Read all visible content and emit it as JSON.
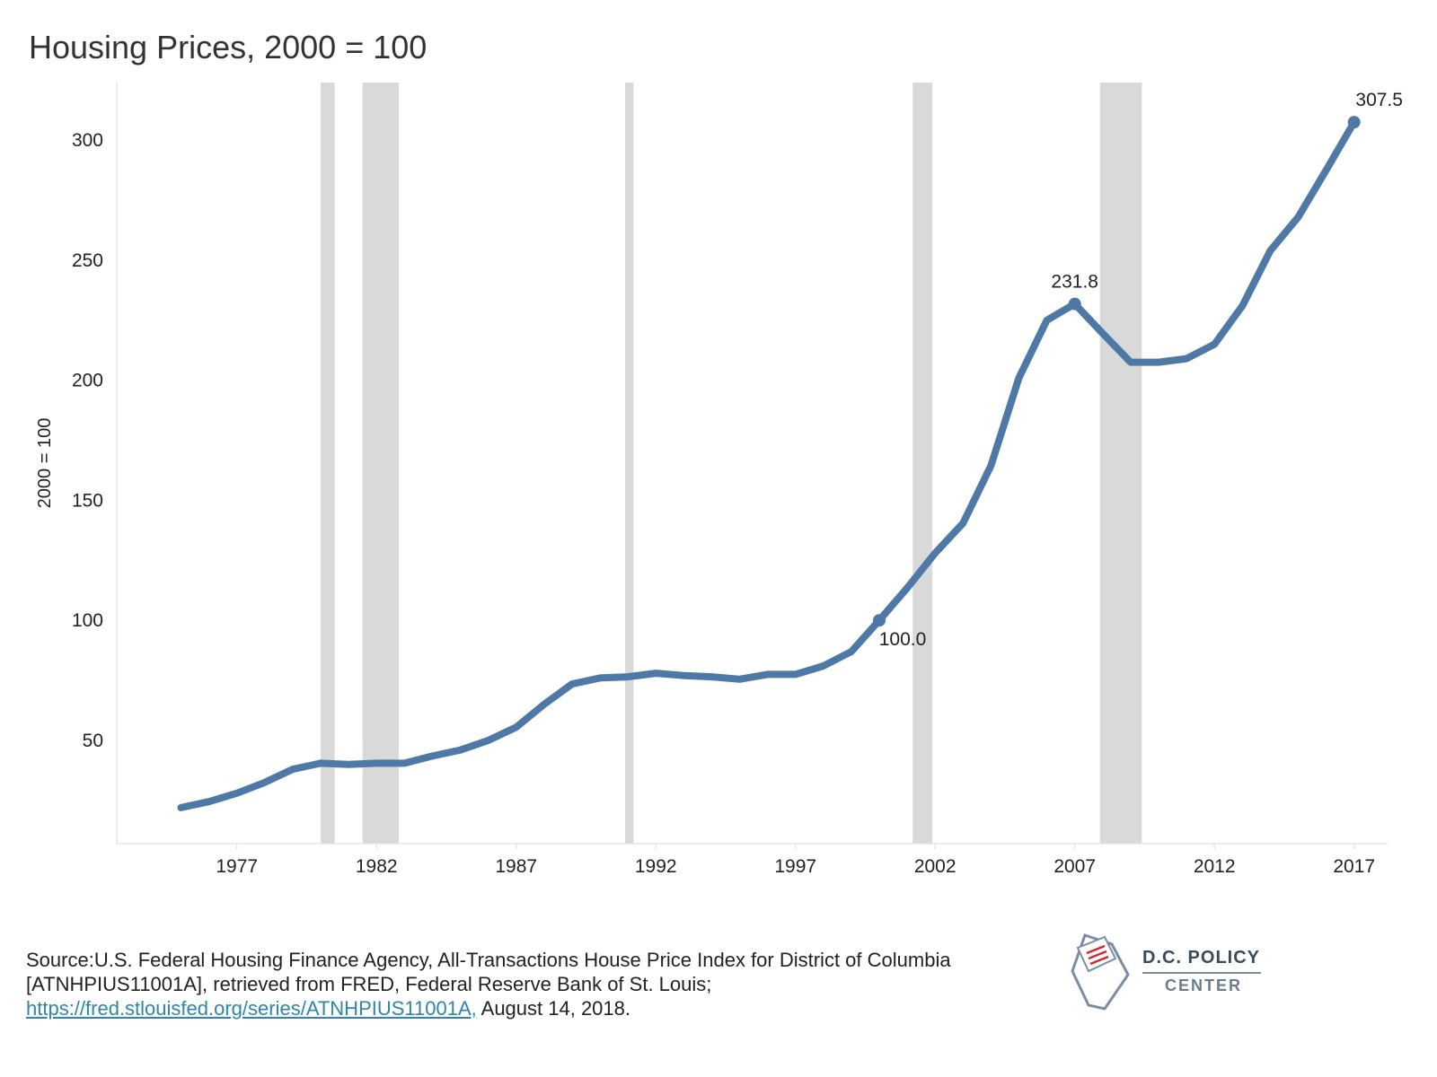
{
  "title": "Housing Prices, 2000 = 100",
  "source": {
    "prefix": "Source:U.S. Federal Housing Finance Agency, All-Transactions House Price Index for District of Columbia [ATNHPIUS11001A], retrieved from FRED, Federal Reserve Bank of St. Louis; ",
    "link_text": "https://fred.stlouisfed.org/series/ATNHPIUS11001A,",
    "suffix": " August 14, 2018."
  },
  "logo": {
    "line1": "D.C. POLICY",
    "line2": "CENTER",
    "icon": "dc-map-icon"
  },
  "colors": {
    "line": "#4e79a7",
    "recession": "#d9d9d9",
    "axis": "#e6e6e6",
    "link": "#2e86ab"
  },
  "chart_data": {
    "type": "line",
    "title": "Housing Prices, 2000 = 100",
    "xlabel": "",
    "ylabel": "2000 = 100",
    "xlim": [
      1972.7,
      2018.2
    ],
    "ylim": [
      7,
      324
    ],
    "x_ticks": [
      1977,
      1982,
      1987,
      1992,
      1997,
      2002,
      2007,
      2012,
      2017
    ],
    "y_ticks": [
      50,
      100,
      150,
      200,
      250,
      300
    ],
    "grid": false,
    "recession_bands": [
      [
        1980.0,
        1980.5
      ],
      [
        1981.5,
        1982.8
      ],
      [
        1990.9,
        1991.2
      ],
      [
        2001.2,
        2001.9
      ],
      [
        2007.9,
        2009.4
      ]
    ],
    "series": [
      {
        "x": [
          1975,
          1976,
          1977,
          1978,
          1979,
          1980,
          1981,
          1982,
          1983,
          1984,
          1985,
          1986,
          1987,
          1988,
          1989,
          1990,
          1991,
          1992,
          1993,
          1994,
          1995,
          1996,
          1997,
          1998,
          1999,
          2000,
          2001,
          2002,
          2003,
          2004,
          2005,
          2006,
          2007,
          2008,
          2009,
          2010,
          2011,
          2012,
          2013,
          2014,
          2015,
          2016,
          2017
        ],
        "y": [
          22,
          24.5,
          28,
          32.5,
          38,
          40.5,
          40,
          40.5,
          40.5,
          43.5,
          46,
          50,
          55.5,
          65,
          73.5,
          76,
          76.5,
          78,
          77,
          76.5,
          75.5,
          77.5,
          77.5,
          81,
          87,
          100.0,
          113.5,
          128,
          140.5,
          164.5,
          201,
          225,
          231.8,
          219.5,
          207.5,
          207.5,
          209,
          215,
          231,
          254,
          268,
          287.5,
          307.5
        ]
      }
    ],
    "annotations": [
      {
        "x": 2000,
        "y": 100.0,
        "label": "100.0"
      },
      {
        "x": 2007,
        "y": 231.8,
        "label": "231.8"
      },
      {
        "x": 2017,
        "y": 307.5,
        "label": "307.5"
      }
    ]
  }
}
